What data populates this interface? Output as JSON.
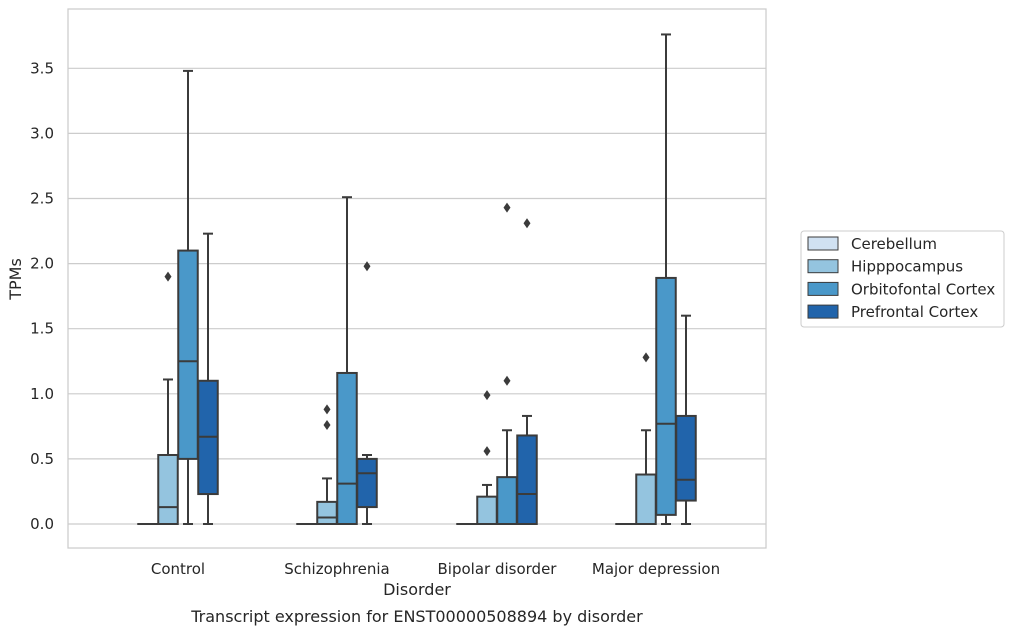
{
  "chart_data": {
    "type": "box",
    "xlabel": "Disorder",
    "ylabel": "TPMs",
    "caption": "Transcript expression for ENST00000508894 by disorder",
    "ylim": [
      -0.18,
      3.9
    ],
    "yticks": [
      0.0,
      0.5,
      1.0,
      1.5,
      2.0,
      2.5,
      3.0,
      3.5
    ],
    "ytick_labels": [
      "0.0",
      "0.5",
      "1.0",
      "1.5",
      "2.0",
      "2.5",
      "3.0",
      "3.5"
    ],
    "grid": "horizontal",
    "legend_position": "right",
    "categories": [
      "Control",
      "Schizophrenia",
      "Bipolar disorder",
      "Major depression"
    ],
    "series": [
      {
        "name": "Cerebellum",
        "color": "#d0e1f2",
        "boxes": [
          {
            "whislo": 0,
            "q1": 0,
            "med": 0,
            "q3": 0,
            "whishi": 0,
            "fliers": []
          },
          {
            "whislo": 0,
            "q1": 0,
            "med": 0,
            "q3": 0,
            "whishi": 0,
            "fliers": []
          },
          {
            "whislo": 0,
            "q1": 0,
            "med": 0,
            "q3": 0,
            "whishi": 0,
            "fliers": []
          },
          {
            "whislo": 0,
            "q1": 0,
            "med": 0,
            "q3": 0,
            "whishi": 0,
            "fliers": []
          }
        ]
      },
      {
        "name": "Hipppocampus",
        "color": "#94c4df",
        "boxes": [
          {
            "whislo": 0,
            "q1": 0,
            "med": 0.13,
            "q3": 0.53,
            "whishi": 1.11,
            "fliers": [
              1.9
            ]
          },
          {
            "whislo": 0,
            "q1": 0,
            "med": 0.05,
            "q3": 0.17,
            "whishi": 0.35,
            "fliers": [
              0.76,
              0.88
            ]
          },
          {
            "whislo": 0,
            "q1": 0,
            "med": 0,
            "q3": 0.21,
            "whishi": 0.3,
            "fliers": [
              0.56,
              0.99
            ]
          },
          {
            "whislo": 0,
            "q1": 0,
            "med": 0,
            "q3": 0.38,
            "whishi": 0.72,
            "fliers": [
              1.28
            ]
          }
        ]
      },
      {
        "name": "Orbitofontal Cortex",
        "color": "#4a98c9",
        "boxes": [
          {
            "whislo": 0,
            "q1": 0.5,
            "med": 1.25,
            "q3": 2.1,
            "whishi": 3.48,
            "fliers": []
          },
          {
            "whislo": 0,
            "q1": 0,
            "med": 0.31,
            "q3": 1.16,
            "whishi": 2.51,
            "fliers": []
          },
          {
            "whislo": 0,
            "q1": 0,
            "med": 0,
            "q3": 0.36,
            "whishi": 0.72,
            "fliers": [
              1.1,
              2.43
            ]
          },
          {
            "whislo": 0,
            "q1": 0.07,
            "med": 0.77,
            "q3": 1.89,
            "whishi": 3.76,
            "fliers": []
          }
        ]
      },
      {
        "name": "Prefrontal Cortex",
        "color": "#2164ab",
        "boxes": [
          {
            "whislo": 0,
            "q1": 0.23,
            "med": 0.67,
            "q3": 1.1,
            "whishi": 2.23,
            "fliers": []
          },
          {
            "whislo": 0,
            "q1": 0.13,
            "med": 0.39,
            "q3": 0.5,
            "whishi": 0.53,
            "fliers": [
              1.98
            ]
          },
          {
            "whislo": 0,
            "q1": 0,
            "med": 0.23,
            "q3": 0.68,
            "whishi": 0.83,
            "fliers": [
              2.31
            ]
          },
          {
            "whislo": 0,
            "q1": 0.18,
            "med": 0.34,
            "q3": 0.83,
            "whishi": 1.6,
            "fliers": []
          }
        ]
      }
    ]
  }
}
